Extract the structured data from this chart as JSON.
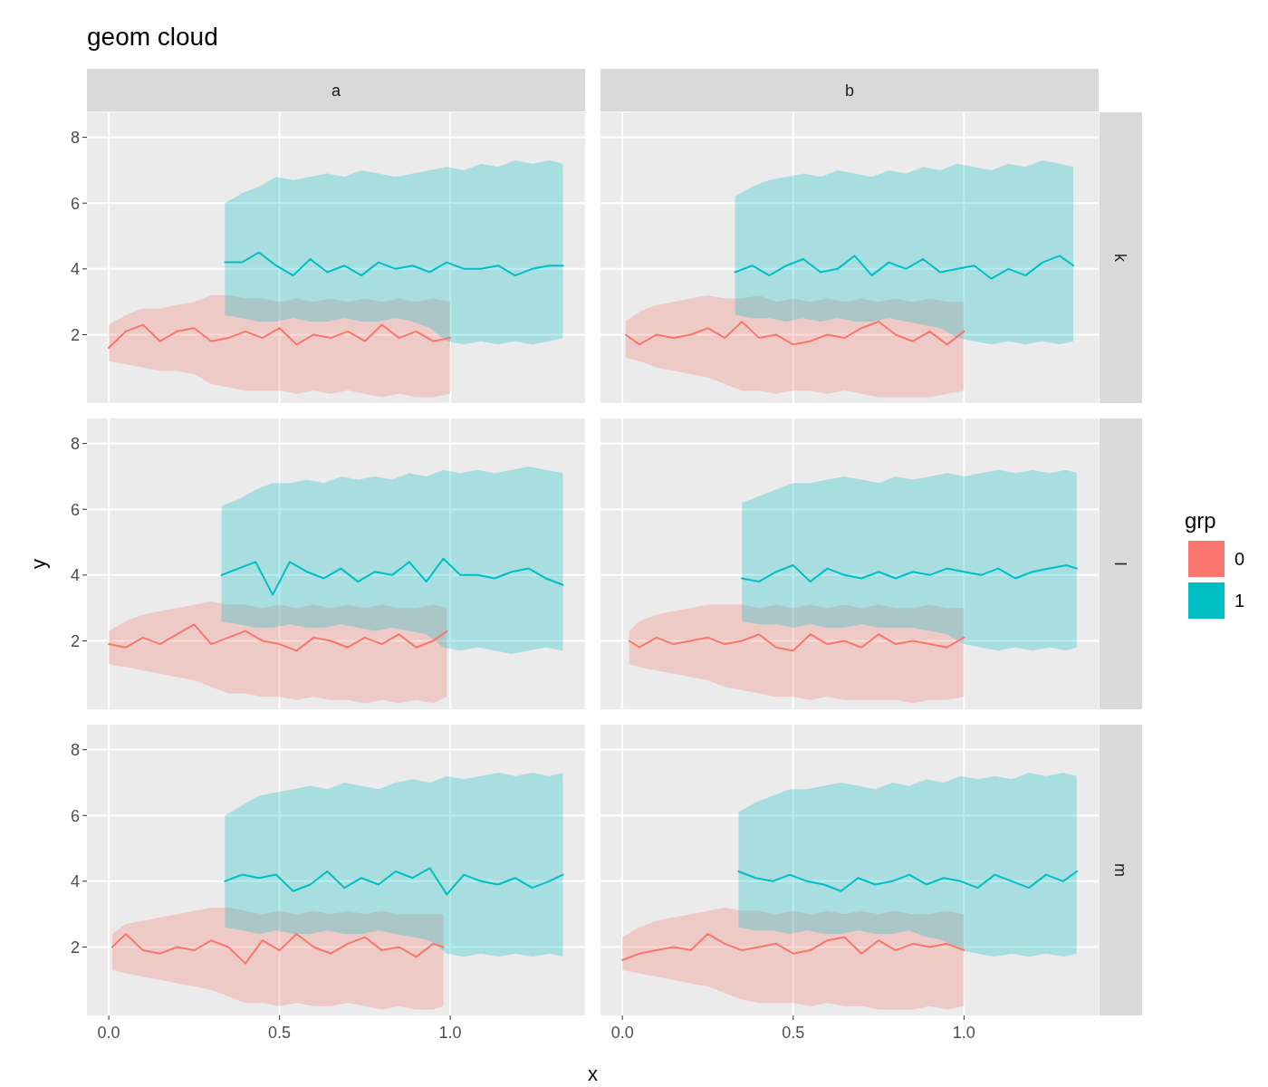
{
  "chart_data": [
    {
      "type": "line",
      "title": "geom cloud",
      "annotations": [
        "a"
      ],
      "xlim": [
        -0.064,
        1.395
      ],
      "ylim": [
        -0.08,
        8.76
      ],
      "xticks": [
        0,
        0.5,
        1
      ],
      "yticks": [
        2,
        4,
        6,
        8
      ],
      "grid": true,
      "tick_labels": "y",
      "series": [
        {
          "color": "#f8766d",
          "x": [
            0,
            0.05,
            0.1,
            0.15,
            0.2,
            0.25,
            0.3,
            0.35,
            0.4,
            0.45,
            0.5,
            0.55,
            0.6,
            0.65,
            0.7,
            0.75,
            0.8,
            0.85,
            0.9,
            0.95,
            1.0
          ],
          "values": [
            1.6,
            2.1,
            2.3,
            1.8,
            2.1,
            2.2,
            1.8,
            1.9,
            2.1,
            1.9,
            2.2,
            1.7,
            2.0,
            1.9,
            2.1,
            1.8,
            2.3,
            1.9,
            2.1,
            1.8,
            1.9
          ],
          "lower": [
            1.2,
            1.1,
            1.0,
            0.9,
            0.9,
            0.8,
            0.5,
            0.4,
            0.3,
            0.3,
            0.3,
            0.2,
            0.3,
            0.2,
            0.3,
            0.2,
            0.1,
            0.2,
            0.1,
            0.1,
            0.2
          ],
          "upper": [
            2.3,
            2.6,
            2.8,
            2.8,
            2.9,
            3.0,
            3.2,
            3.2,
            3.1,
            3.1,
            3.0,
            3.1,
            3.0,
            3.1,
            3.0,
            3.1,
            3.0,
            3.1,
            3.0,
            3.1,
            3.0
          ]
        },
        {
          "color": "#00bfc4",
          "x": [
            0.34,
            0.39,
            0.44,
            0.49,
            0.54,
            0.59,
            0.64,
            0.69,
            0.74,
            0.79,
            0.84,
            0.89,
            0.94,
            0.99,
            1.04,
            1.09,
            1.14,
            1.19,
            1.24,
            1.29,
            1.33
          ],
          "values": [
            4.2,
            4.2,
            4.5,
            4.1,
            3.8,
            4.3,
            3.9,
            4.1,
            3.8,
            4.2,
            4.0,
            4.1,
            3.9,
            4.2,
            4.0,
            4.0,
            4.1,
            3.8,
            4.0,
            4.1,
            4.1
          ],
          "lower": [
            2.6,
            2.5,
            2.4,
            2.4,
            2.5,
            2.4,
            2.4,
            2.5,
            2.4,
            2.4,
            2.5,
            2.4,
            2.2,
            1.8,
            1.7,
            1.8,
            1.7,
            1.8,
            1.7,
            1.8,
            1.9
          ],
          "upper": [
            6.0,
            6.3,
            6.5,
            6.8,
            6.7,
            6.8,
            6.9,
            6.8,
            7.0,
            6.9,
            6.8,
            6.9,
            7.0,
            7.1,
            7.0,
            7.2,
            7.1,
            7.3,
            7.2,
            7.3,
            7.2
          ]
        }
      ]
    },
    {
      "type": "line",
      "annotations": [
        "b",
        "k"
      ],
      "xlim": [
        -0.064,
        1.394
      ],
      "ylim": [
        -0.08,
        8.76
      ],
      "xticks": [
        0,
        0.5,
        1
      ],
      "yticks": [
        2,
        4,
        6,
        8
      ],
      "grid": true,
      "tick_labels": false,
      "series": [
        {
          "color": "#f8766d",
          "x": [
            0.01,
            0.05,
            0.1,
            0.15,
            0.2,
            0.25,
            0.3,
            0.35,
            0.4,
            0.45,
            0.5,
            0.55,
            0.6,
            0.65,
            0.7,
            0.75,
            0.8,
            0.85,
            0.9,
            0.95,
            1.0
          ],
          "values": [
            2.0,
            1.7,
            2.0,
            1.9,
            2.0,
            2.2,
            1.9,
            2.4,
            1.9,
            2.0,
            1.7,
            1.8,
            2.0,
            1.9,
            2.2,
            2.4,
            2.0,
            1.8,
            2.1,
            1.7,
            2.1
          ],
          "lower": [
            1.3,
            1.2,
            1.0,
            0.9,
            0.8,
            0.7,
            0.5,
            0.3,
            0.3,
            0.2,
            0.3,
            0.3,
            0.2,
            0.3,
            0.2,
            0.1,
            0.1,
            0.1,
            0.1,
            0.2,
            0.3
          ],
          "upper": [
            2.4,
            2.7,
            2.9,
            3.0,
            3.1,
            3.2,
            3.1,
            3.1,
            3.2,
            3.0,
            3.1,
            3.0,
            3.1,
            3.0,
            3.1,
            3.0,
            3.1,
            3.0,
            3.1,
            3.0,
            3.0
          ]
        },
        {
          "color": "#00bfc4",
          "x": [
            0.33,
            0.38,
            0.43,
            0.48,
            0.53,
            0.58,
            0.63,
            0.68,
            0.73,
            0.78,
            0.83,
            0.88,
            0.93,
            0.98,
            1.03,
            1.08,
            1.13,
            1.18,
            1.23,
            1.28,
            1.32
          ],
          "values": [
            3.9,
            4.1,
            3.8,
            4.1,
            4.3,
            3.9,
            4.0,
            4.4,
            3.8,
            4.2,
            4.0,
            4.3,
            3.9,
            4.0,
            4.1,
            3.7,
            4.0,
            3.8,
            4.2,
            4.4,
            4.1
          ],
          "lower": [
            2.6,
            2.5,
            2.5,
            2.4,
            2.5,
            2.4,
            2.5,
            2.4,
            2.4,
            2.5,
            2.4,
            2.3,
            2.2,
            1.9,
            1.8,
            1.7,
            1.8,
            1.7,
            1.8,
            1.7,
            1.8
          ],
          "upper": [
            6.2,
            6.5,
            6.7,
            6.8,
            6.9,
            6.8,
            7.0,
            6.9,
            6.8,
            7.0,
            6.9,
            7.1,
            7.0,
            7.2,
            7.1,
            7.0,
            7.2,
            7.1,
            7.3,
            7.2,
            7.1
          ]
        }
      ]
    },
    {
      "type": "line",
      "ylabel": "y",
      "xlim": [
        -0.064,
        1.395
      ],
      "ylim": [
        -0.08,
        8.76
      ],
      "xticks": [
        0,
        0.5,
        1
      ],
      "yticks": [
        2,
        4,
        6,
        8
      ],
      "grid": true,
      "tick_labels": "y",
      "series": [
        {
          "color": "#f8766d",
          "x": [
            0,
            0.05,
            0.1,
            0.15,
            0.2,
            0.25,
            0.3,
            0.35,
            0.4,
            0.45,
            0.5,
            0.55,
            0.6,
            0.65,
            0.7,
            0.75,
            0.8,
            0.85,
            0.9,
            0.95,
            0.99
          ],
          "values": [
            1.9,
            1.8,
            2.1,
            1.9,
            2.2,
            2.5,
            1.9,
            2.1,
            2.3,
            2.0,
            1.9,
            1.7,
            2.1,
            2.0,
            1.8,
            2.1,
            1.9,
            2.2,
            1.8,
            2.0,
            2.3
          ],
          "lower": [
            1.3,
            1.2,
            1.1,
            1.0,
            0.9,
            0.8,
            0.6,
            0.4,
            0.4,
            0.3,
            0.3,
            0.2,
            0.3,
            0.2,
            0.2,
            0.1,
            0.2,
            0.1,
            0.2,
            0.1,
            0.3
          ],
          "upper": [
            2.3,
            2.6,
            2.8,
            2.9,
            3.0,
            3.1,
            3.2,
            3.1,
            3.1,
            3.0,
            3.1,
            3.0,
            3.1,
            3.0,
            3.1,
            3.0,
            3.1,
            3.0,
            3.0,
            3.1,
            3.0
          ]
        },
        {
          "color": "#00bfc4",
          "x": [
            0.33,
            0.38,
            0.43,
            0.48,
            0.53,
            0.58,
            0.63,
            0.68,
            0.73,
            0.78,
            0.83,
            0.88,
            0.93,
            0.98,
            1.03,
            1.08,
            1.13,
            1.18,
            1.23,
            1.28,
            1.33
          ],
          "values": [
            4.0,
            4.2,
            4.4,
            3.4,
            4.4,
            4.1,
            3.9,
            4.2,
            3.8,
            4.1,
            4.0,
            4.4,
            3.8,
            4.5,
            4.0,
            4.0,
            3.9,
            4.1,
            4.2,
            3.9,
            3.7
          ],
          "lower": [
            2.6,
            2.5,
            2.4,
            2.4,
            2.5,
            2.4,
            2.4,
            2.5,
            2.4,
            2.3,
            2.4,
            2.3,
            2.2,
            1.8,
            1.7,
            1.8,
            1.7,
            1.6,
            1.7,
            1.8,
            1.7
          ],
          "upper": [
            6.1,
            6.3,
            6.6,
            6.8,
            6.8,
            6.9,
            6.8,
            7.0,
            6.9,
            7.0,
            6.9,
            7.1,
            7.0,
            7.2,
            7.1,
            7.2,
            7.1,
            7.2,
            7.3,
            7.2,
            7.1
          ]
        }
      ]
    },
    {
      "type": "line",
      "annotations": [
        "l"
      ],
      "legend": "right",
      "legend_title": "grp",
      "xlim": [
        -0.064,
        1.394
      ],
      "ylim": [
        -0.08,
        8.76
      ],
      "xticks": [
        0,
        0.5,
        1
      ],
      "yticks": [
        2,
        4,
        6,
        8
      ],
      "grid": true,
      "tick_labels": false,
      "series": [
        {
          "name": "0",
          "color": "#f8766d",
          "x": [
            0.02,
            0.05,
            0.1,
            0.15,
            0.2,
            0.25,
            0.3,
            0.35,
            0.4,
            0.45,
            0.5,
            0.55,
            0.6,
            0.65,
            0.7,
            0.75,
            0.8,
            0.85,
            0.9,
            0.95,
            1.0
          ],
          "values": [
            2.0,
            1.8,
            2.1,
            1.9,
            2.0,
            2.1,
            1.9,
            2.0,
            2.2,
            1.8,
            1.7,
            2.2,
            1.9,
            2.0,
            1.8,
            2.2,
            1.9,
            2.0,
            1.9,
            1.8,
            2.1
          ],
          "lower": [
            1.3,
            1.2,
            1.1,
            1.0,
            0.9,
            0.8,
            0.6,
            0.5,
            0.4,
            0.3,
            0.3,
            0.2,
            0.3,
            0.2,
            0.2,
            0.2,
            0.2,
            0.1,
            0.2,
            0.2,
            0.3
          ],
          "upper": [
            2.3,
            2.6,
            2.8,
            2.9,
            3.0,
            3.1,
            3.1,
            3.1,
            3.0,
            3.1,
            3.0,
            3.1,
            3.0,
            3.1,
            3.0,
            3.1,
            3.0,
            3.0,
            3.1,
            3.0,
            3.0
          ]
        },
        {
          "name": "1",
          "color": "#00bfc4",
          "x": [
            0.35,
            0.4,
            0.45,
            0.5,
            0.55,
            0.6,
            0.65,
            0.7,
            0.75,
            0.8,
            0.85,
            0.9,
            0.95,
            1.0,
            1.05,
            1.1,
            1.15,
            1.2,
            1.25,
            1.3,
            1.33
          ],
          "values": [
            3.9,
            3.8,
            4.1,
            4.3,
            3.8,
            4.2,
            4.0,
            3.9,
            4.1,
            3.9,
            4.1,
            4.0,
            4.2,
            4.1,
            4.0,
            4.2,
            3.9,
            4.1,
            4.2,
            4.3,
            4.2
          ],
          "lower": [
            2.6,
            2.5,
            2.5,
            2.4,
            2.5,
            2.4,
            2.4,
            2.5,
            2.4,
            2.4,
            2.4,
            2.3,
            2.2,
            1.9,
            1.8,
            1.7,
            1.8,
            1.7,
            1.8,
            1.7,
            1.8
          ],
          "upper": [
            6.2,
            6.4,
            6.6,
            6.8,
            6.8,
            6.9,
            7.0,
            6.9,
            6.8,
            7.0,
            6.9,
            7.0,
            7.1,
            7.0,
            7.1,
            7.2,
            7.1,
            7.2,
            7.1,
            7.2,
            7.1
          ]
        }
      ]
    },
    {
      "type": "line",
      "xlabel": "x",
      "xlim": [
        -0.064,
        1.395
      ],
      "ylim": [
        -0.08,
        8.76
      ],
      "xticks": [
        {
          "value": 0,
          "label": "0.0"
        },
        {
          "value": 0.5,
          "label": "0.5"
        },
        {
          "value": 1,
          "label": "1.0"
        }
      ],
      "yticks": [
        2,
        4,
        6,
        8
      ],
      "grid": true,
      "series": [
        {
          "color": "#f8766d",
          "x": [
            0.01,
            0.05,
            0.1,
            0.15,
            0.2,
            0.25,
            0.3,
            0.35,
            0.4,
            0.45,
            0.5,
            0.55,
            0.6,
            0.65,
            0.7,
            0.75,
            0.8,
            0.85,
            0.9,
            0.95,
            0.98
          ],
          "values": [
            2.0,
            2.4,
            1.9,
            1.8,
            2.0,
            1.9,
            2.2,
            2.0,
            1.5,
            2.2,
            1.9,
            2.4,
            2.0,
            1.8,
            2.1,
            2.3,
            1.9,
            2.0,
            1.7,
            2.1,
            2.0
          ],
          "lower": [
            1.3,
            1.2,
            1.1,
            1.0,
            0.9,
            0.8,
            0.7,
            0.5,
            0.3,
            0.3,
            0.2,
            0.3,
            0.2,
            0.2,
            0.3,
            0.2,
            0.1,
            0.2,
            0.1,
            0.1,
            0.2
          ],
          "upper": [
            2.4,
            2.7,
            2.8,
            2.9,
            3.0,
            3.1,
            3.2,
            3.2,
            3.1,
            3.0,
            3.1,
            3.0,
            3.1,
            3.0,
            3.1,
            3.0,
            3.1,
            3.0,
            3.0,
            3.0,
            3.0
          ]
        },
        {
          "color": "#00bfc4",
          "x": [
            0.34,
            0.39,
            0.44,
            0.49,
            0.54,
            0.59,
            0.64,
            0.69,
            0.74,
            0.79,
            0.84,
            0.89,
            0.94,
            0.99,
            1.04,
            1.09,
            1.14,
            1.19,
            1.24,
            1.29,
            1.33
          ],
          "values": [
            4.0,
            4.2,
            4.1,
            4.2,
            3.7,
            3.9,
            4.3,
            3.8,
            4.1,
            3.9,
            4.3,
            4.1,
            4.4,
            3.6,
            4.2,
            4.0,
            3.9,
            4.1,
            3.8,
            4.0,
            4.2
          ],
          "lower": [
            2.6,
            2.5,
            2.4,
            2.5,
            2.4,
            2.4,
            2.5,
            2.4,
            2.4,
            2.5,
            2.4,
            2.3,
            2.2,
            1.8,
            1.7,
            1.8,
            1.7,
            1.8,
            1.7,
            1.8,
            1.7
          ],
          "upper": [
            6.0,
            6.3,
            6.6,
            6.7,
            6.8,
            6.9,
            6.8,
            7.0,
            6.9,
            6.8,
            7.0,
            7.1,
            7.0,
            7.2,
            7.1,
            7.2,
            7.3,
            7.2,
            7.3,
            7.2,
            7.3
          ]
        }
      ]
    },
    {
      "type": "line",
      "tick_labels": "x",
      "xlim": [
        -0.064,
        1.394
      ],
      "ylim": [
        -0.08,
        8.76
      ],
      "xticks": [
        {
          "value": 0,
          "label": "0.0"
        },
        {
          "value": 0.5,
          "label": "0.5"
        },
        {
          "value": 1,
          "label": "1.0"
        }
      ],
      "yticks": [
        2,
        4,
        6,
        8
      ],
      "grid": true,
      "annotations": [
        "m"
      ],
      "series": [
        {
          "color": "#f8766d",
          "x": [
            0,
            0.05,
            0.1,
            0.15,
            0.2,
            0.25,
            0.3,
            0.35,
            0.4,
            0.45,
            0.5,
            0.55,
            0.6,
            0.65,
            0.7,
            0.75,
            0.8,
            0.85,
            0.9,
            0.95,
            1.0
          ],
          "values": [
            1.6,
            1.8,
            1.9,
            2.0,
            1.9,
            2.4,
            2.1,
            1.9,
            2.0,
            2.1,
            1.8,
            1.9,
            2.2,
            2.3,
            1.8,
            2.2,
            1.9,
            2.1,
            2.0,
            2.1,
            1.9
          ],
          "lower": [
            1.3,
            1.2,
            1.1,
            1.0,
            0.9,
            0.8,
            0.6,
            0.4,
            0.3,
            0.3,
            0.3,
            0.2,
            0.3,
            0.2,
            0.2,
            0.1,
            0.1,
            0.1,
            0.2,
            0.1,
            0.2
          ],
          "upper": [
            2.3,
            2.6,
            2.8,
            2.9,
            3.0,
            3.1,
            3.2,
            3.1,
            3.1,
            3.0,
            3.1,
            3.0,
            3.1,
            3.0,
            3.1,
            3.0,
            3.1,
            3.0,
            3.0,
            3.1,
            3.0
          ]
        },
        {
          "color": "#00bfc4",
          "x": [
            0.34,
            0.39,
            0.44,
            0.49,
            0.54,
            0.59,
            0.64,
            0.69,
            0.74,
            0.79,
            0.84,
            0.89,
            0.94,
            0.99,
            1.04,
            1.09,
            1.14,
            1.19,
            1.24,
            1.29,
            1.33
          ],
          "values": [
            4.3,
            4.1,
            4.0,
            4.2,
            4.0,
            3.9,
            3.7,
            4.1,
            3.9,
            4.0,
            4.2,
            3.9,
            4.1,
            4.0,
            3.8,
            4.2,
            4.0,
            3.8,
            4.2,
            4.0,
            4.3
          ],
          "lower": [
            2.6,
            2.5,
            2.5,
            2.4,
            2.5,
            2.4,
            2.4,
            2.5,
            2.4,
            2.4,
            2.5,
            2.3,
            2.2,
            1.9,
            1.8,
            1.7,
            1.8,
            1.7,
            1.8,
            1.7,
            1.8
          ],
          "upper": [
            6.1,
            6.4,
            6.6,
            6.8,
            6.8,
            6.9,
            7.0,
            6.9,
            6.8,
            7.0,
            6.9,
            7.1,
            7.0,
            7.2,
            7.1,
            7.2,
            7.1,
            7.3,
            7.2,
            7.3,
            7.2
          ]
        }
      ]
    }
  ]
}
